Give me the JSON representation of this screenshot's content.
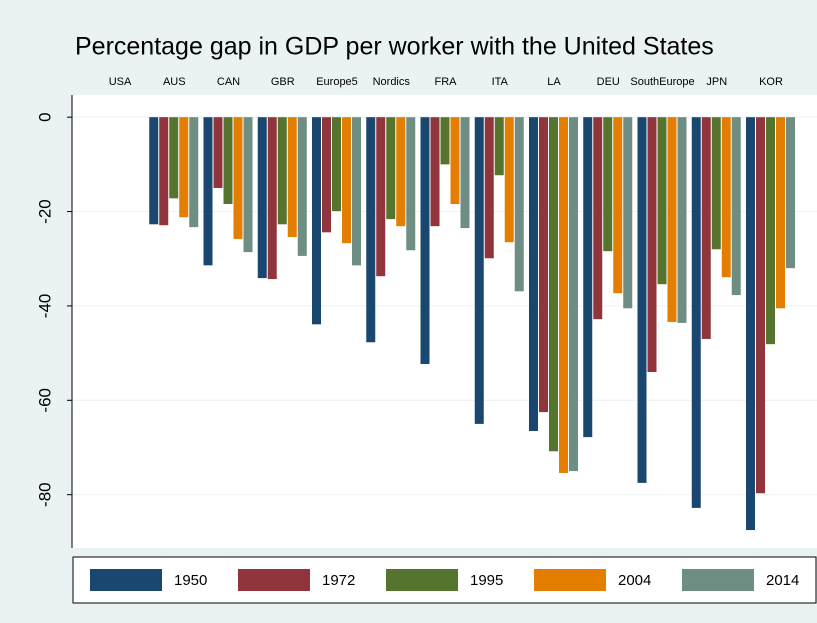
{
  "chart_data": {
    "type": "bar",
    "title": "Percentage gap in GDP per worker with the United States",
    "categories": [
      "USA",
      "AUS",
      "CAN",
      "GBR",
      "Europe5",
      "Nordics",
      "FRA",
      "ITA",
      "LA",
      "DEU",
      "SouthEurope",
      "JPN",
      "KOR"
    ],
    "series": [
      {
        "name": "1950",
        "color": "#1a476f",
        "values": [
          0,
          -22.7,
          -31.4,
          -34.1,
          -43.9,
          -47.7,
          -52.3,
          -65.0,
          -66.5,
          -67.8,
          -77.5,
          -82.8,
          -87.5
        ]
      },
      {
        "name": "1972",
        "color": "#90353b",
        "values": [
          0,
          -22.9,
          -15.0,
          -34.3,
          -24.4,
          -33.7,
          -23.1,
          -29.9,
          -62.5,
          -42.8,
          -54.0,
          -47.0,
          -79.7
        ]
      },
      {
        "name": "1995",
        "color": "#55752f",
        "values": [
          0,
          -17.2,
          -18.4,
          -22.7,
          -19.9,
          -21.6,
          -10.0,
          -12.3,
          -70.8,
          -28.4,
          -35.4,
          -28.0,
          -48.1
        ]
      },
      {
        "name": "2004",
        "color": "#e37e00",
        "values": [
          0,
          -21.2,
          -25.8,
          -25.4,
          -26.7,
          -23.1,
          -18.4,
          -26.5,
          -75.4,
          -37.3,
          -43.4,
          -33.9,
          -40.5
        ]
      },
      {
        "name": "2014",
        "color": "#6e8e84",
        "values": [
          0,
          -23.3,
          -28.6,
          -29.4,
          -31.4,
          -28.2,
          -23.5,
          -36.9,
          -75.0,
          -40.5,
          -43.6,
          -37.7,
          -32.0
        ]
      }
    ],
    "ylim": [
      -91.3,
      4.7
    ],
    "yticks": [
      0,
      -20,
      -40,
      -60,
      -80
    ],
    "grid": true,
    "legend": "bottom"
  }
}
